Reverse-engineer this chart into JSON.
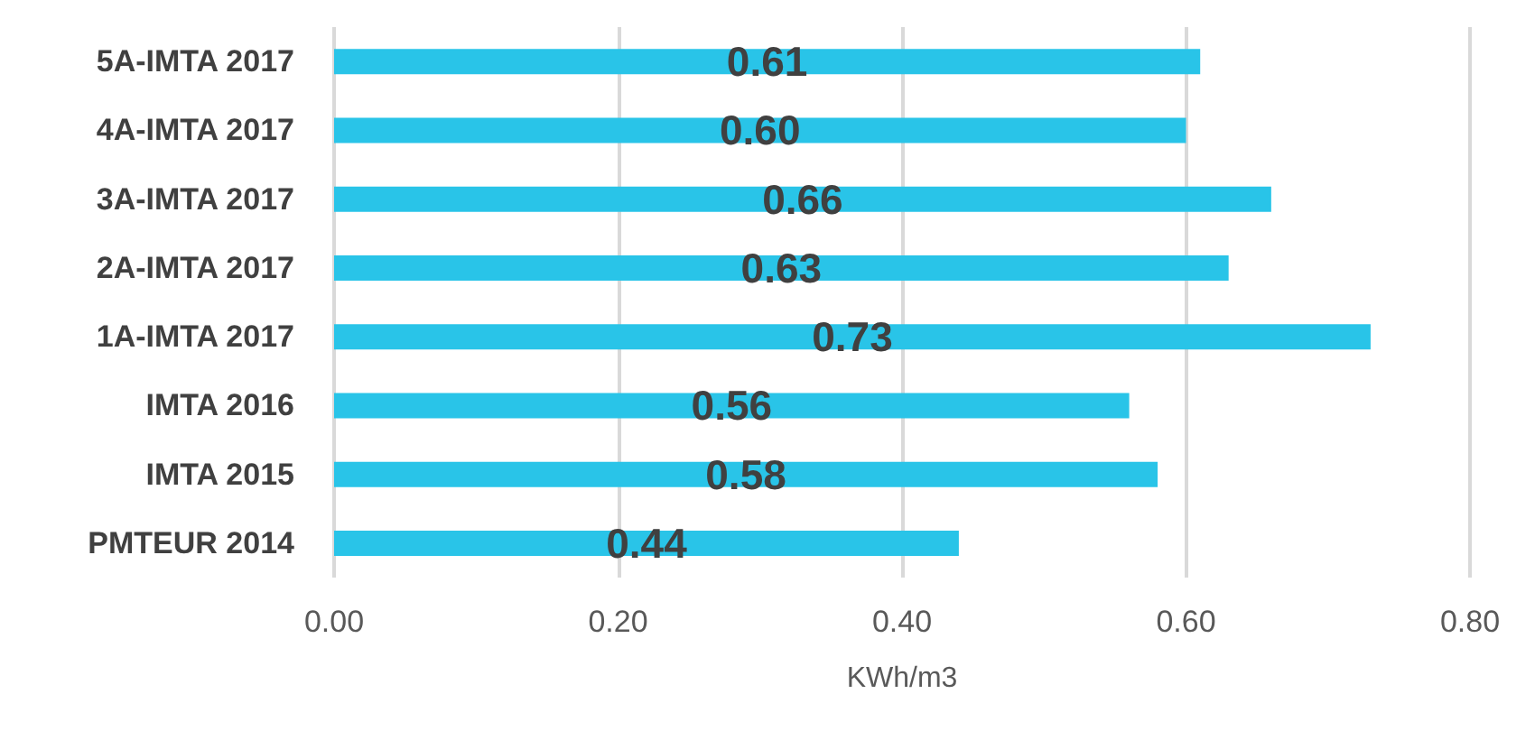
{
  "chart_data": {
    "type": "bar",
    "orientation": "horizontal",
    "xlabel": "KWh/m3",
    "categories": [
      "5A-IMTA 2017",
      "4A-IMTA 2017",
      "3A-IMTA 2017",
      "2A-IMTA 2017",
      "1A-IMTA 2017",
      "IMTA 2016",
      "IMTA 2015",
      "PMTEUR 2014"
    ],
    "values": [
      0.61,
      0.6,
      0.66,
      0.63,
      0.73,
      0.56,
      0.58,
      0.44
    ],
    "value_labels": [
      "0.61",
      "0.60",
      "0.66",
      "0.63",
      "0.73",
      "0.56",
      "0.58",
      "0.44"
    ],
    "color": "#29c4e8",
    "xlim": [
      0,
      0.8
    ],
    "xticks": [
      {
        "value": 0,
        "label": "0.00"
      },
      {
        "value": 0.2,
        "label": "0.20"
      },
      {
        "value": 0.4,
        "label": "0.40"
      },
      {
        "value": 0.6,
        "label": "0.60"
      },
      {
        "value": 0.8,
        "label": "0.80"
      }
    ],
    "grid": "x"
  }
}
